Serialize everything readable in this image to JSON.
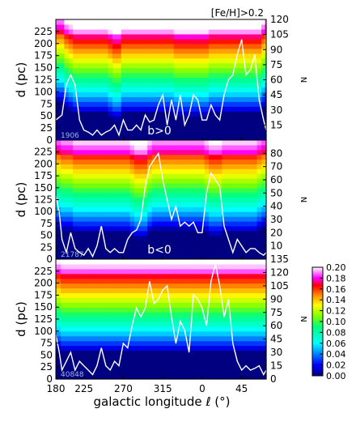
{
  "chart_data": [
    {
      "type": "heatmap",
      "annotation": "[Fe/H]>0.2",
      "label": "b>0",
      "count": "1906",
      "ylabel": "d (pc)",
      "ylabel_right": "N",
      "y_ticks": [
        0,
        25,
        50,
        75,
        100,
        125,
        150,
        175,
        200,
        225
      ],
      "ylim": [
        0,
        250
      ],
      "n_ticks": [
        15,
        30,
        45,
        60,
        75,
        90,
        105,
        120
      ],
      "nlim": [
        0,
        120
      ],
      "line_l": [
        167,
        160,
        155,
        150,
        145,
        140,
        135,
        130,
        125,
        120,
        115,
        110,
        105,
        100,
        95,
        90,
        85,
        80,
        75,
        70,
        65,
        60,
        55,
        50,
        45,
        40,
        35,
        30,
        25,
        20,
        15,
        10,
        5,
        0,
        -5,
        -10,
        -15,
        -20,
        -25,
        -30,
        -35,
        -40,
        -45,
        -50,
        -55,
        -60,
        -65,
        -70,
        -73
      ],
      "line_n": [
        20,
        25,
        55,
        65,
        55,
        20,
        10,
        8,
        5,
        10,
        5,
        8,
        10,
        15,
        5,
        20,
        10,
        10,
        15,
        10,
        25,
        18,
        20,
        35,
        45,
        15,
        40,
        20,
        45,
        15,
        25,
        45,
        40,
        20,
        20,
        35,
        25,
        20,
        45,
        60,
        65,
        85,
        100,
        65,
        70,
        85,
        40,
        20,
        10
      ],
      "heat_color": [
        2,
        2,
        4,
        5,
        6,
        6,
        6,
        6,
        6,
        6,
        6,
        6,
        7,
        8,
        8,
        6,
        6,
        6,
        6,
        6,
        6,
        6,
        6,
        6,
        6,
        6,
        6,
        7,
        7,
        7,
        7,
        7,
        7,
        7,
        7,
        6,
        6,
        6,
        6,
        6,
        6,
        6,
        6,
        6,
        6,
        6,
        6,
        4,
        2
      ],
      "heat_bump": [
        0,
        0,
        0,
        0,
        0,
        0,
        0,
        0,
        0,
        0,
        0,
        0,
        0,
        0,
        0,
        0,
        0,
        0,
        0,
        0,
        0,
        0,
        0,
        0,
        0,
        0,
        0,
        0,
        0,
        0,
        0,
        0,
        0,
        0,
        0,
        0,
        0,
        0,
        0,
        0,
        0,
        0,
        0,
        0,
        0,
        0,
        0,
        0,
        0
      ],
      "heat_scale": 1.0
    },
    {
      "type": "heatmap",
      "label": "b<0",
      "count": "21787",
      "ylabel": "d (pc)",
      "ylabel_right": "N",
      "y_ticks": [
        0,
        25,
        50,
        75,
        100,
        125,
        150,
        175,
        200,
        225
      ],
      "ylim": [
        0,
        250
      ],
      "n_ticks": [
        10,
        20,
        30,
        40,
        50,
        60,
        70,
        80
      ],
      "nlim": [
        0,
        90
      ],
      "line_l": [
        167,
        163,
        160,
        155,
        150,
        145,
        140,
        135,
        130,
        125,
        120,
        115,
        110,
        105,
        100,
        95,
        90,
        85,
        80,
        75,
        70,
        65,
        60,
        55,
        50,
        45,
        40,
        35,
        30,
        25,
        20,
        15,
        10,
        5,
        0,
        -5,
        -10,
        -15,
        -20,
        -25,
        -30,
        -35,
        -40,
        -45,
        -50,
        -55,
        -60,
        -65,
        -70,
        -73
      ],
      "line_n": [
        48,
        35,
        15,
        5,
        20,
        8,
        5,
        3,
        8,
        2,
        10,
        25,
        8,
        5,
        8,
        5,
        5,
        15,
        20,
        22,
        30,
        55,
        70,
        75,
        80,
        60,
        45,
        30,
        40,
        25,
        28,
        25,
        28,
        20,
        20,
        50,
        65,
        60,
        55,
        25,
        15,
        5,
        15,
        10,
        5,
        8,
        8,
        5,
        3,
        5
      ],
      "heat_color": [
        4,
        4,
        5,
        5,
        5,
        6,
        6,
        6,
        6,
        6,
        6,
        6,
        6,
        6,
        6,
        6,
        6,
        6,
        7,
        8,
        8,
        8,
        6,
        5,
        5,
        5,
        5,
        5,
        5,
        5,
        5,
        5,
        5,
        5,
        5,
        6,
        7,
        7,
        7,
        6,
        6,
        6,
        6,
        6,
        6,
        6,
        6,
        5,
        4,
        4
      ],
      "heat_bump": [
        0,
        0,
        0,
        0,
        0,
        0,
        0,
        0,
        0,
        0,
        0,
        0,
        0,
        0,
        0,
        0,
        0,
        0,
        0,
        0,
        0,
        0,
        0,
        0,
        0,
        0,
        0,
        0,
        0,
        0,
        0,
        0,
        0,
        0,
        0,
        0,
        0,
        0,
        0,
        0,
        0,
        0,
        0,
        0,
        0,
        0,
        0,
        0,
        0,
        0
      ],
      "heat_scale": 0.93
    },
    {
      "type": "heatmap",
      "count": "40848",
      "ylabel": "d (pc)",
      "ylabel_right": "N",
      "y_ticks": [
        0,
        25,
        50,
        75,
        100,
        125,
        150,
        175,
        200,
        225
      ],
      "ylim": [
        0,
        250
      ],
      "n_ticks": [
        0,
        15,
        30,
        45,
        60,
        75,
        90,
        105,
        120,
        135
      ],
      "nlim": [
        0,
        135
      ],
      "line_l": [
        167,
        163,
        160,
        155,
        150,
        145,
        140,
        135,
        130,
        125,
        120,
        115,
        110,
        105,
        100,
        95,
        90,
        85,
        80,
        75,
        70,
        65,
        60,
        55,
        50,
        45,
        40,
        35,
        30,
        25,
        20,
        15,
        10,
        5,
        0,
        -5,
        -10,
        -15,
        -20,
        -25,
        -30,
        -35,
        -40,
        -45,
        -50,
        -55,
        -60,
        -65,
        -70,
        -73
      ],
      "line_n": [
        50,
        30,
        10,
        20,
        30,
        10,
        20,
        15,
        10,
        5,
        15,
        35,
        15,
        10,
        20,
        15,
        40,
        35,
        60,
        80,
        70,
        80,
        110,
        85,
        90,
        100,
        105,
        70,
        40,
        65,
        55,
        30,
        95,
        90,
        80,
        60,
        110,
        130,
        105,
        70,
        90,
        40,
        20,
        10,
        15,
        10,
        12,
        15,
        5,
        10
      ],
      "heat_color": [
        5,
        5,
        6,
        6,
        6,
        6,
        6,
        6,
        6,
        6,
        6,
        6,
        6,
        6,
        6,
        6,
        6,
        6,
        6,
        6,
        6,
        6,
        6,
        6,
        6,
        6,
        6,
        6,
        6,
        6,
        6,
        6,
        6,
        6,
        6,
        6,
        6,
        6,
        6,
        6,
        6,
        6,
        6,
        6,
        6,
        6,
        6,
        6,
        6,
        6
      ],
      "heat_bump": [
        0,
        0,
        0,
        0,
        0,
        0,
        0,
        0,
        0,
        0,
        0,
        0,
        0,
        0,
        0,
        0,
        0,
        0,
        0,
        0,
        0,
        0,
        0,
        0,
        0,
        0,
        0,
        0,
        0,
        0,
        0,
        0,
        0,
        0,
        0,
        0,
        0,
        0,
        0,
        0,
        0,
        0,
        0,
        0,
        0,
        0,
        0,
        0,
        0,
        0
      ],
      "heat_scale": 0.97
    }
  ],
  "x_axis": {
    "xlim": [
      167,
      -73
    ],
    "tick_values": [
      180,
      225,
      270,
      315,
      0,
      45
    ],
    "tick_positions": [
      167,
      135,
      90,
      45,
      0,
      -45
    ],
    "label": "galactic longitude ℓ (°)"
  },
  "colorbar": {
    "ticks": [
      "0.00",
      "0.02",
      "0.04",
      "0.06",
      "0.08",
      "0.10",
      "0.12",
      "0.14",
      "0.16",
      "0.18",
      "0.20"
    ],
    "range": [
      0,
      0.2
    ]
  }
}
